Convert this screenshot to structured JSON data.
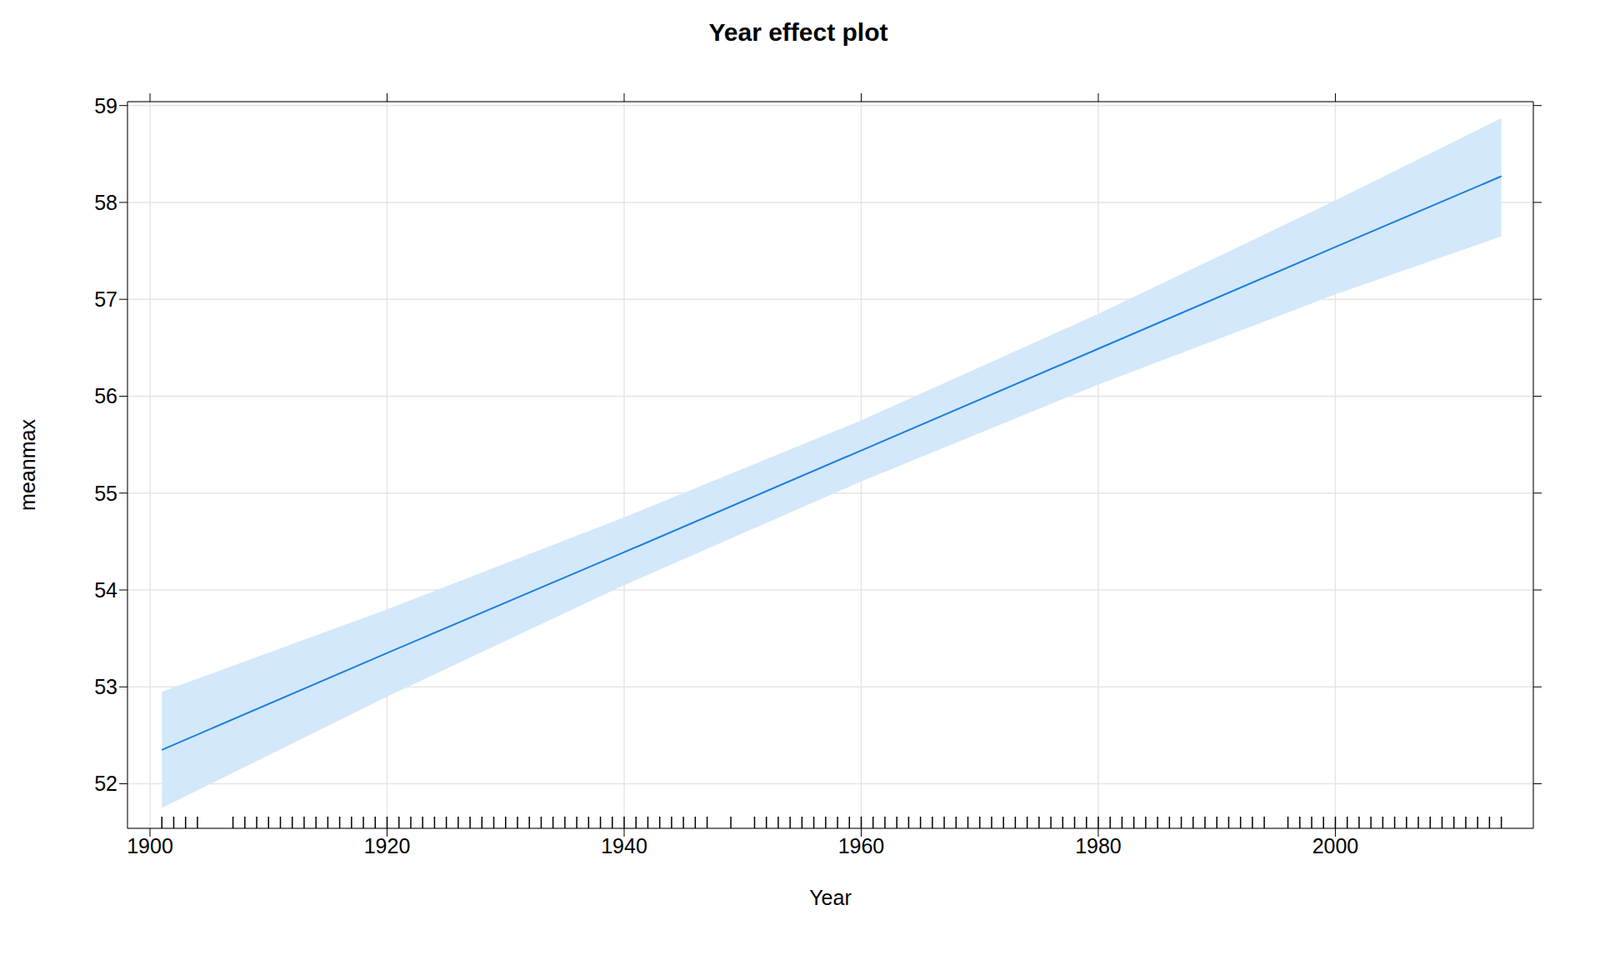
{
  "chart_data": {
    "type": "line",
    "title": "Year effect plot",
    "x_label": "Year",
    "y_label": "meanmax",
    "xlim": [
      1898.1,
      2016.7
    ],
    "ylim": [
      51.54,
      59.04
    ],
    "xticks": [
      1900,
      1920,
      1940,
      1960,
      1980,
      2000
    ],
    "yticks": [
      52,
      53,
      54,
      55,
      56,
      57,
      58,
      59
    ],
    "grid": true,
    "x": [
      1901,
      1920,
      1940,
      1960,
      1980,
      2000,
      2014
    ],
    "values": [
      52.35,
      53.35,
      54.39,
      55.44,
      56.49,
      57.54,
      58.27
    ],
    "color": "#1a7fe0",
    "band": {
      "lower": [
        51.75,
        52.9,
        54.05,
        55.12,
        56.12,
        57.05,
        57.65
      ],
      "upper": [
        52.95,
        53.8,
        54.75,
        55.75,
        56.85,
        58.02,
        58.87
      ],
      "color": "#d4e8fb"
    },
    "rug": [
      1901,
      1902,
      1903,
      1904,
      1907,
      1908,
      1909,
      1910,
      1911,
      1912,
      1913,
      1914,
      1915,
      1916,
      1917,
      1918,
      1919,
      1920,
      1921,
      1922,
      1923,
      1924,
      1925,
      1926,
      1927,
      1928,
      1929,
      1930,
      1931,
      1932,
      1933,
      1934,
      1935,
      1936,
      1937,
      1938,
      1939,
      1940,
      1941,
      1942,
      1943,
      1944,
      1945,
      1946,
      1947,
      1949,
      1951,
      1952,
      1953,
      1954,
      1955,
      1956,
      1957,
      1958,
      1959,
      1960,
      1961,
      1962,
      1963,
      1964,
      1965,
      1966,
      1967,
      1968,
      1969,
      1970,
      1971,
      1972,
      1973,
      1974,
      1975,
      1976,
      1977,
      1978,
      1979,
      1980,
      1981,
      1982,
      1983,
      1984,
      1985,
      1986,
      1987,
      1988,
      1989,
      1990,
      1991,
      1992,
      1993,
      1994,
      1996,
      1997,
      1998,
      1999,
      2000,
      2001,
      2002,
      2003,
      2004,
      2005,
      2006,
      2007,
      2008,
      2009,
      2010,
      2011,
      2012,
      2013,
      2014
    ]
  }
}
